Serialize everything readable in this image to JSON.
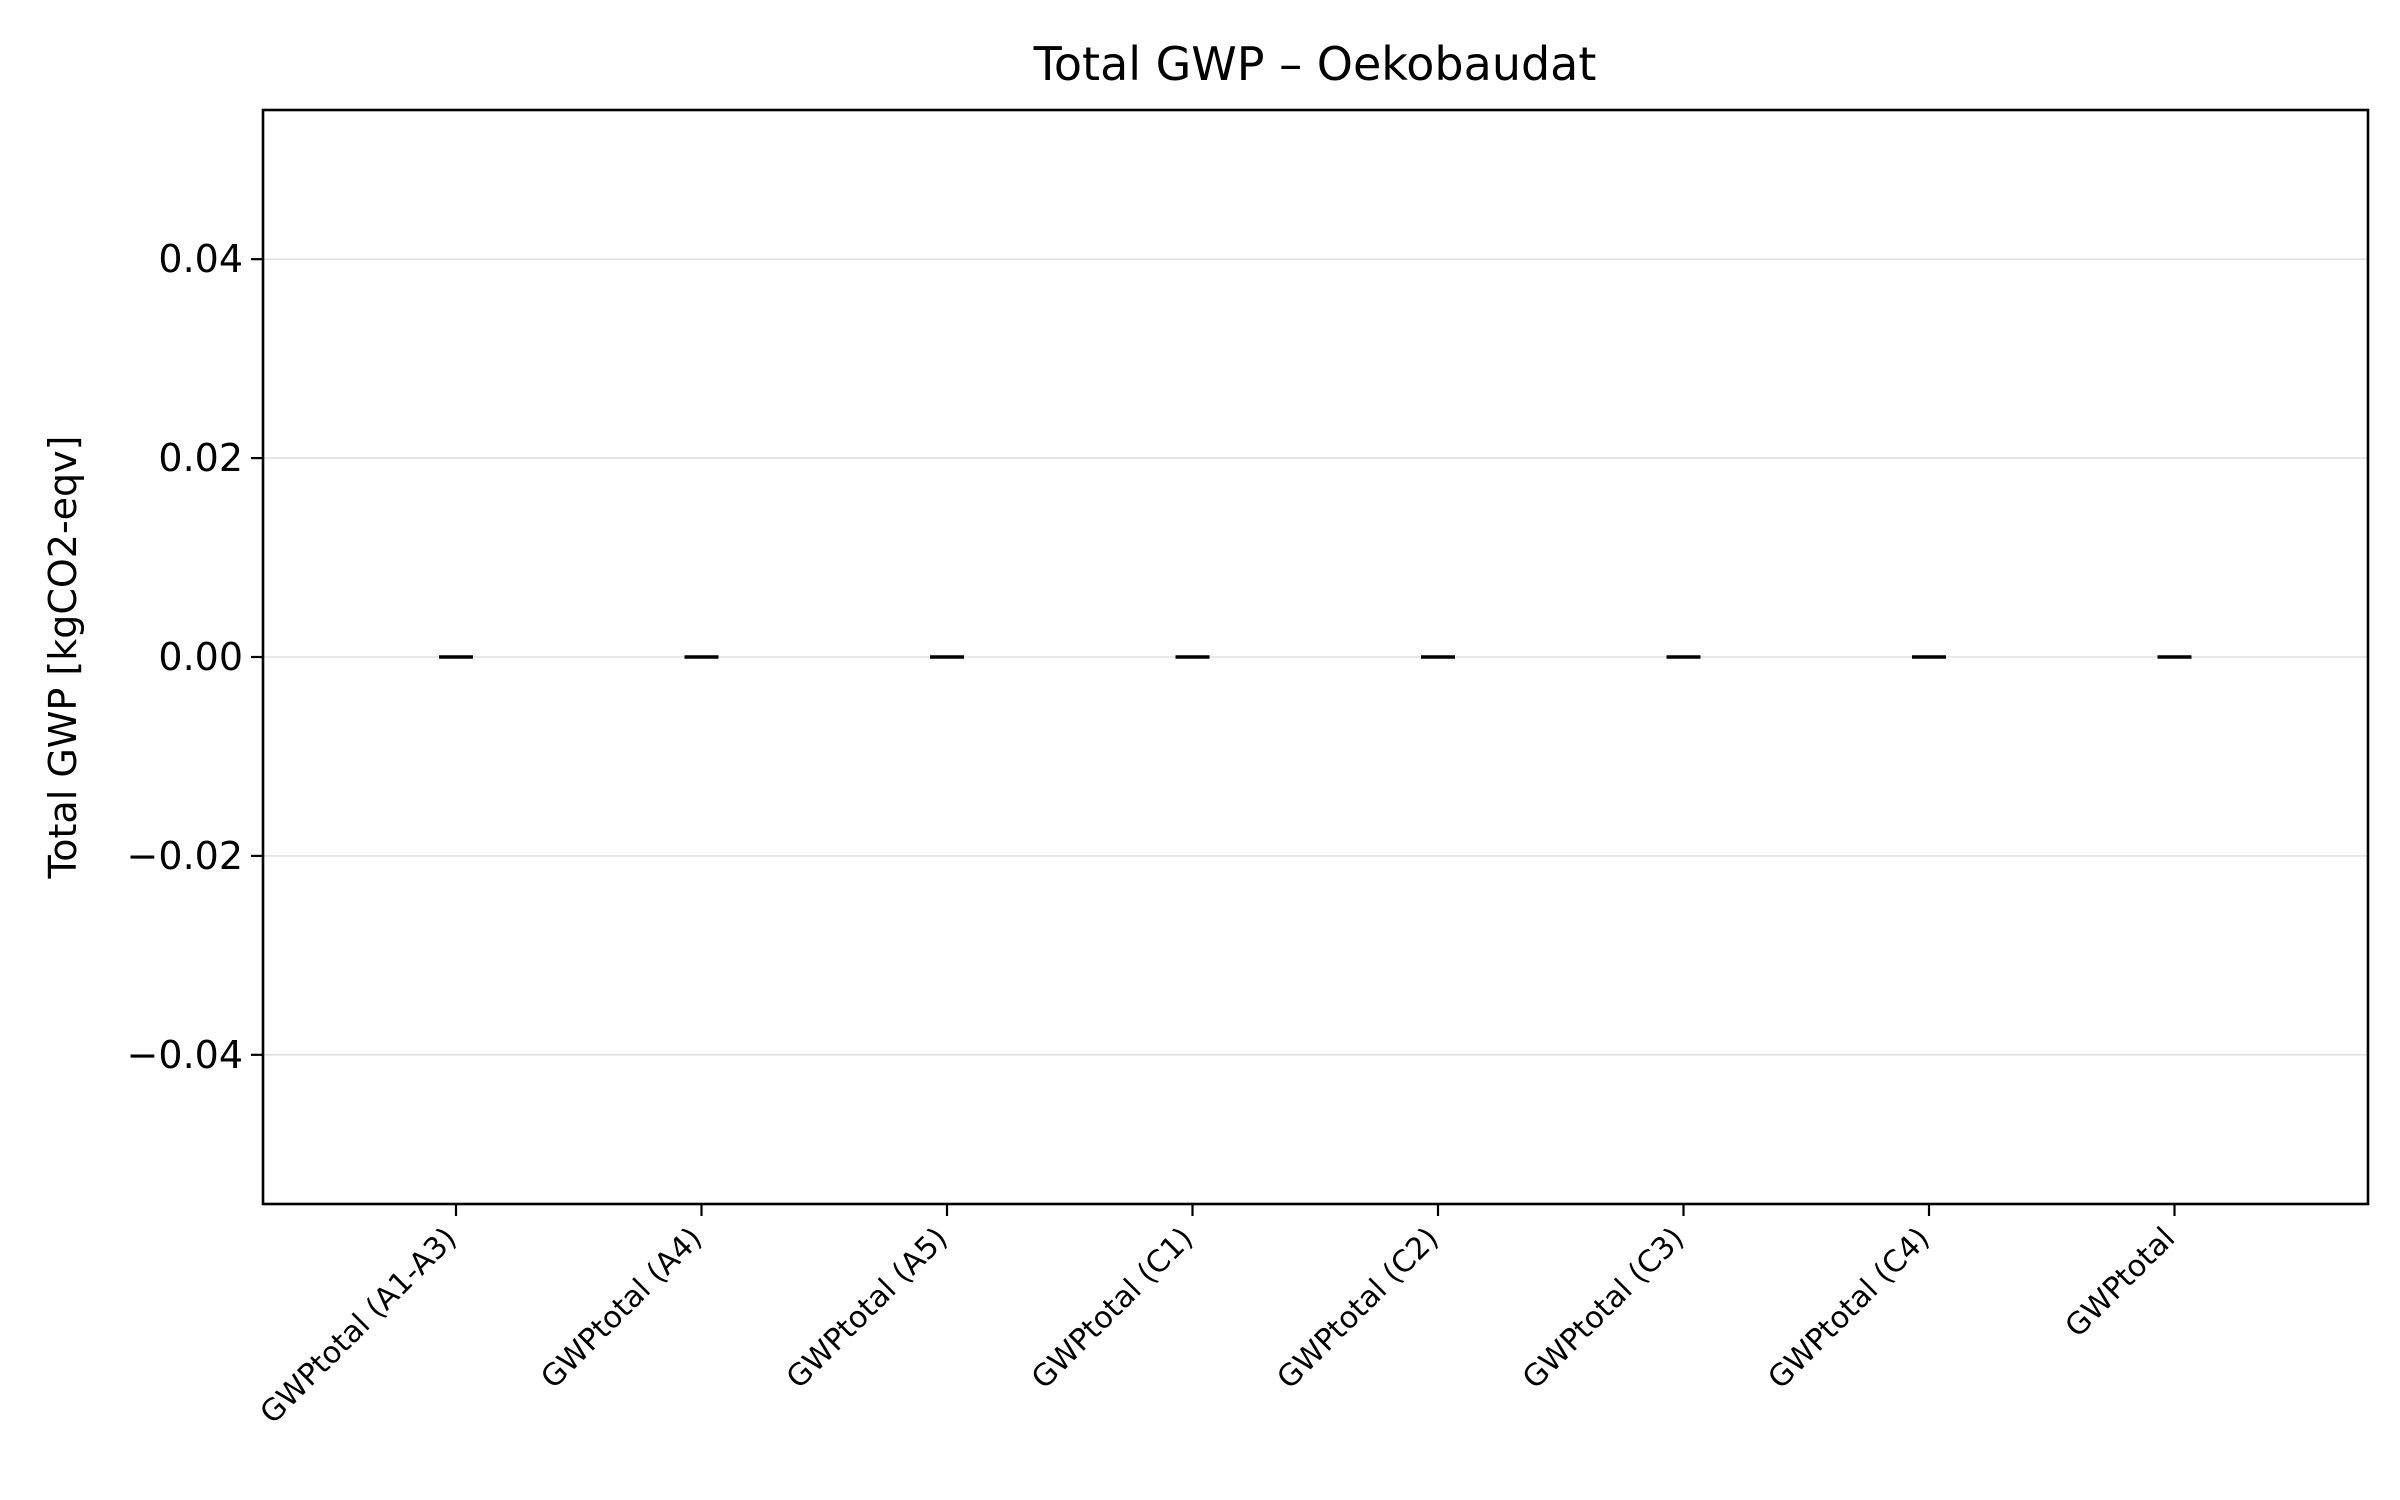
{
  "chart_data": {
    "type": "box",
    "title": "Total GWP – Oekobaudat",
    "xlabel": "",
    "ylabel": "Total GWP [kgCO2-eqv]",
    "categories": [
      "GWPtotal (A1-A3)",
      "GWPtotal (A4)",
      "GWPtotal (A5)",
      "GWPtotal (C1)",
      "GWPtotal (C2)",
      "GWPtotal (C3)",
      "GWPtotal (C4)",
      "GWPtotal"
    ],
    "values": [
      0,
      0,
      0,
      0,
      0,
      0,
      0,
      0
    ],
    "ylim": [
      -0.055,
      0.055
    ],
    "yticks": [
      -0.04,
      -0.02,
      0.0,
      0.02,
      0.04
    ],
    "ytick_labels": [
      "−0.04",
      "−0.02",
      "0.00",
      "0.02",
      "0.04"
    ],
    "grid": "y",
    "legend": "none",
    "colors": {
      "axis": "#000000",
      "grid": "#e0e0e0",
      "marker": "#000000",
      "background": "#ffffff"
    }
  }
}
